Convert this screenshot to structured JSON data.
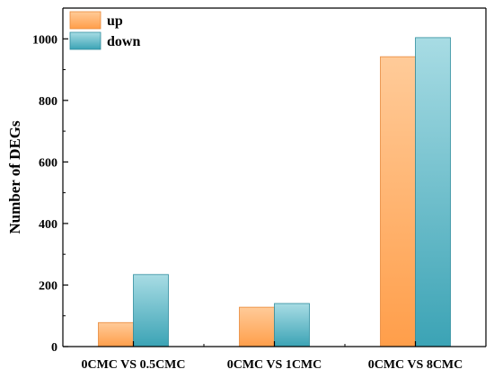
{
  "chart_data": {
    "type": "bar",
    "title": "",
    "xlabel": "",
    "ylabel": "Number of DEGs",
    "categories": [
      "0CMC VS 0.5CMC",
      "0CMC VS 1CMC",
      "0CMC VS 8CMC"
    ],
    "series": [
      {
        "name": "up",
        "values": [
          78,
          128,
          942
        ]
      },
      {
        "name": "down",
        "values": [
          234,
          140,
          1004
        ]
      }
    ],
    "ylim": [
      0,
      1100
    ],
    "yticks": [
      0,
      200,
      400,
      600,
      800,
      1000
    ],
    "grid": false,
    "legend_position": "top-left",
    "colors": {
      "up": [
        "#ffcb99",
        "#ff9e4a"
      ],
      "down": [
        "#a8dce4",
        "#3ba3b5"
      ]
    }
  }
}
